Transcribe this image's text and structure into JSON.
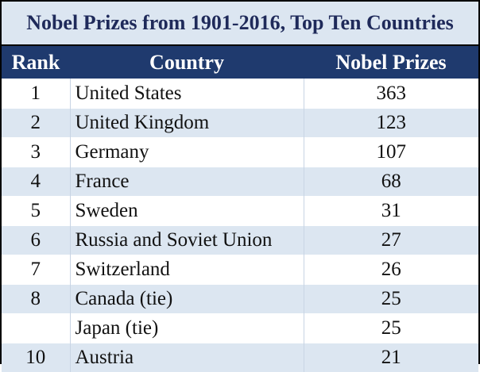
{
  "title": "Nobel Prizes from 1901-2016, Top Ten Countries",
  "colors": {
    "title_background": "#dce6f1",
    "title_text": "#1f2a5a",
    "header_background": "#1f3a6e",
    "header_text": "#ffffff",
    "row_shade": "#dce6f1",
    "row_light": "#ffffff"
  },
  "table": {
    "headers": {
      "rank": "Rank",
      "country": "Country",
      "prizes": "Nobel Prizes"
    },
    "rows": [
      {
        "rank": "1",
        "country": "United States",
        "prizes": "363"
      },
      {
        "rank": "2",
        "country": "United Kingdom",
        "prizes": "123"
      },
      {
        "rank": "3",
        "country": "Germany",
        "prizes": "107"
      },
      {
        "rank": "4",
        "country": "France",
        "prizes": "68"
      },
      {
        "rank": "5",
        "country": "Sweden",
        "prizes": "31"
      },
      {
        "rank": "6",
        "country": "Russia and Soviet Union",
        "prizes": "27"
      },
      {
        "rank": "7",
        "country": "Switzerland",
        "prizes": "26"
      },
      {
        "rank": "8",
        "country": "Canada (tie)",
        "prizes": "25"
      },
      {
        "rank": "",
        "country": "Japan (tie)",
        "prizes": "25"
      },
      {
        "rank": "10",
        "country": "Austria",
        "prizes": "21"
      }
    ]
  }
}
